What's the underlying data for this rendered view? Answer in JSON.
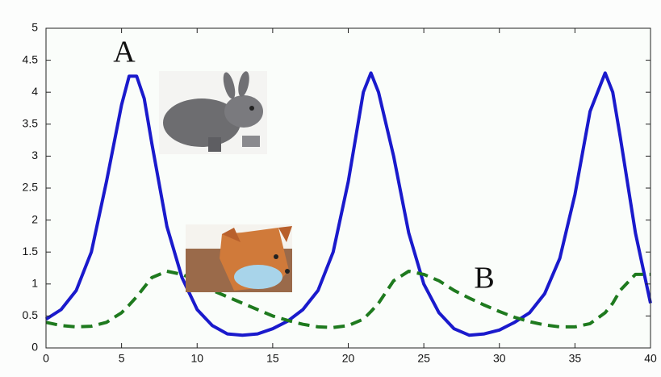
{
  "chart_data": {
    "type": "line",
    "annotations": [
      "A",
      "B"
    ],
    "x": [
      0,
      1,
      2,
      3,
      4,
      5,
      5.5,
      6,
      6.5,
      7,
      8,
      9,
      10,
      11,
      12,
      13,
      14,
      15,
      16,
      17,
      18,
      19,
      20,
      21,
      21.5,
      22,
      23,
      24,
      25,
      26,
      27,
      28,
      29,
      30,
      31,
      32,
      33,
      34,
      35,
      36,
      37,
      37.5,
      38,
      39,
      40
    ],
    "series": [
      {
        "color": "#1a1acc",
        "style": "solid",
        "values": [
          0.45,
          0.6,
          0.9,
          1.5,
          2.6,
          3.8,
          4.25,
          4.25,
          3.9,
          3.2,
          1.9,
          1.1,
          0.6,
          0.35,
          0.22,
          0.2,
          0.22,
          0.3,
          0.42,
          0.6,
          0.9,
          1.5,
          2.6,
          4.0,
          4.3,
          4.0,
          3.0,
          1.8,
          1.0,
          0.55,
          0.3,
          0.2,
          0.22,
          0.28,
          0.4,
          0.55,
          0.85,
          1.4,
          2.4,
          3.7,
          4.3,
          4.0,
          3.3,
          1.8,
          0.7
        ]
      },
      {
        "color": "#1e7a1e",
        "style": "dashed",
        "values": [
          0.4,
          0.35,
          0.33,
          0.34,
          0.4,
          0.55,
          0.67,
          0.8,
          0.95,
          1.1,
          1.2,
          1.15,
          1.05,
          0.9,
          0.8,
          0.7,
          0.6,
          0.5,
          0.43,
          0.37,
          0.33,
          0.32,
          0.35,
          0.45,
          0.57,
          0.7,
          1.05,
          1.2,
          1.15,
          1.05,
          0.9,
          0.78,
          0.67,
          0.57,
          0.48,
          0.41,
          0.36,
          0.33,
          0.33,
          0.38,
          0.55,
          0.7,
          0.9,
          1.15,
          1.15
        ]
      }
    ],
    "xlim": [
      0,
      40
    ],
    "xticks": [
      0,
      5,
      10,
      15,
      20,
      25,
      30,
      35,
      40
    ],
    "ylim": [
      0,
      5
    ],
    "yticks": [
      0,
      0.5,
      1,
      1.5,
      2,
      2.5,
      3,
      3.5,
      4,
      4.5,
      5
    ]
  }
}
